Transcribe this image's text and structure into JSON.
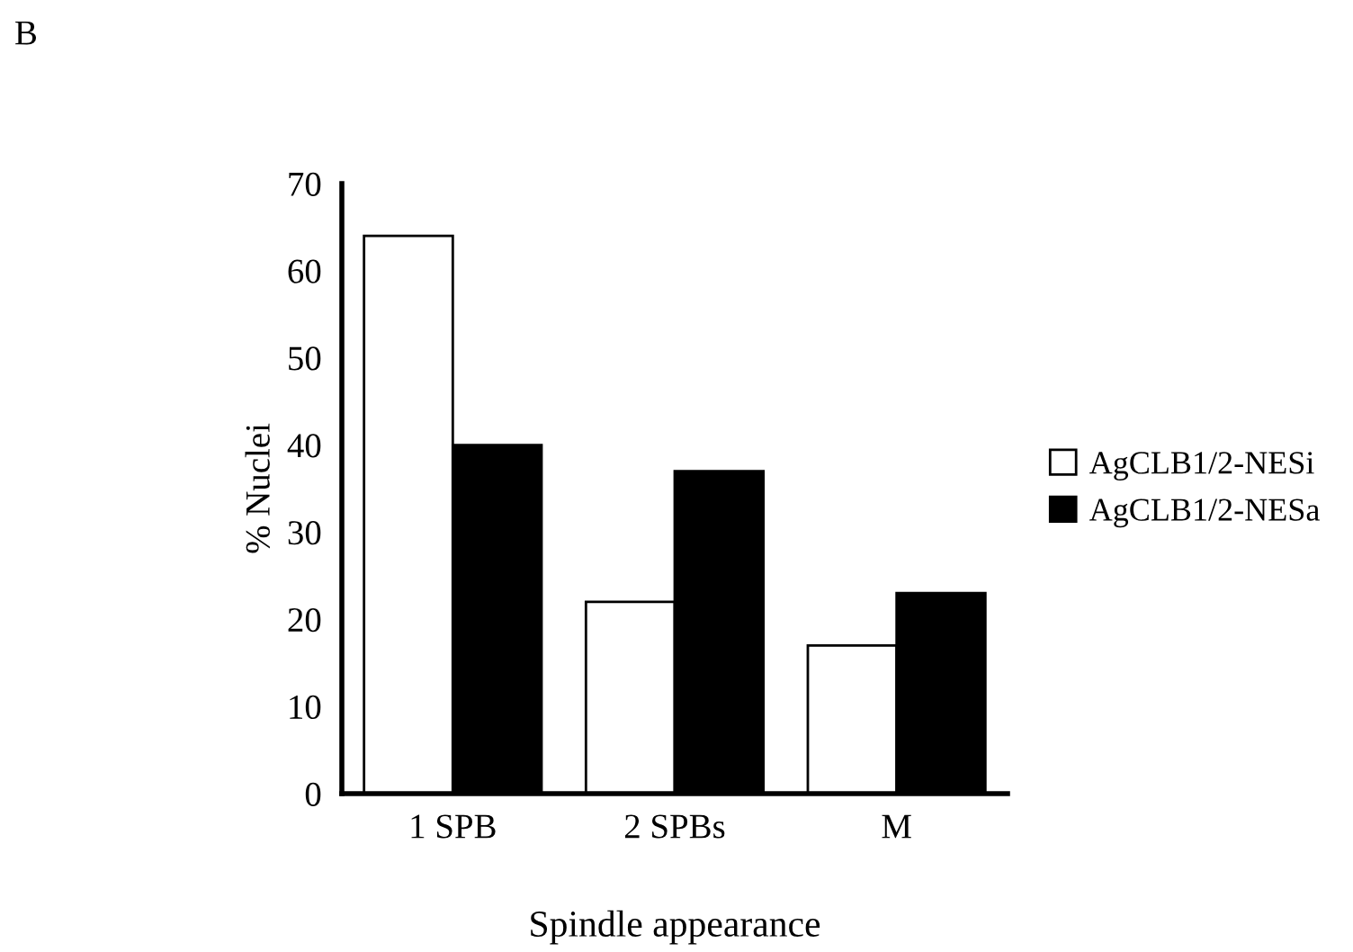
{
  "chart_data": {
    "type": "bar",
    "title": "B",
    "xlabel": "Spindle appearance",
    "ylabel": "% Nuclei",
    "categories": [
      "1 SPB",
      "2 SPBs",
      "M"
    ],
    "series": [
      {
        "name": "AgCLB1/2-NESi",
        "color": "#ffffff",
        "values": [
          64,
          22,
          17
        ]
      },
      {
        "name": "AgCLB1/2-NESa",
        "color": "#000000",
        "values": [
          40,
          37,
          23
        ]
      }
    ],
    "ylim": [
      0,
      70
    ],
    "yticks": [
      0,
      10,
      20,
      30,
      40,
      50,
      60,
      70
    ],
    "grid": false,
    "legend": "right"
  }
}
